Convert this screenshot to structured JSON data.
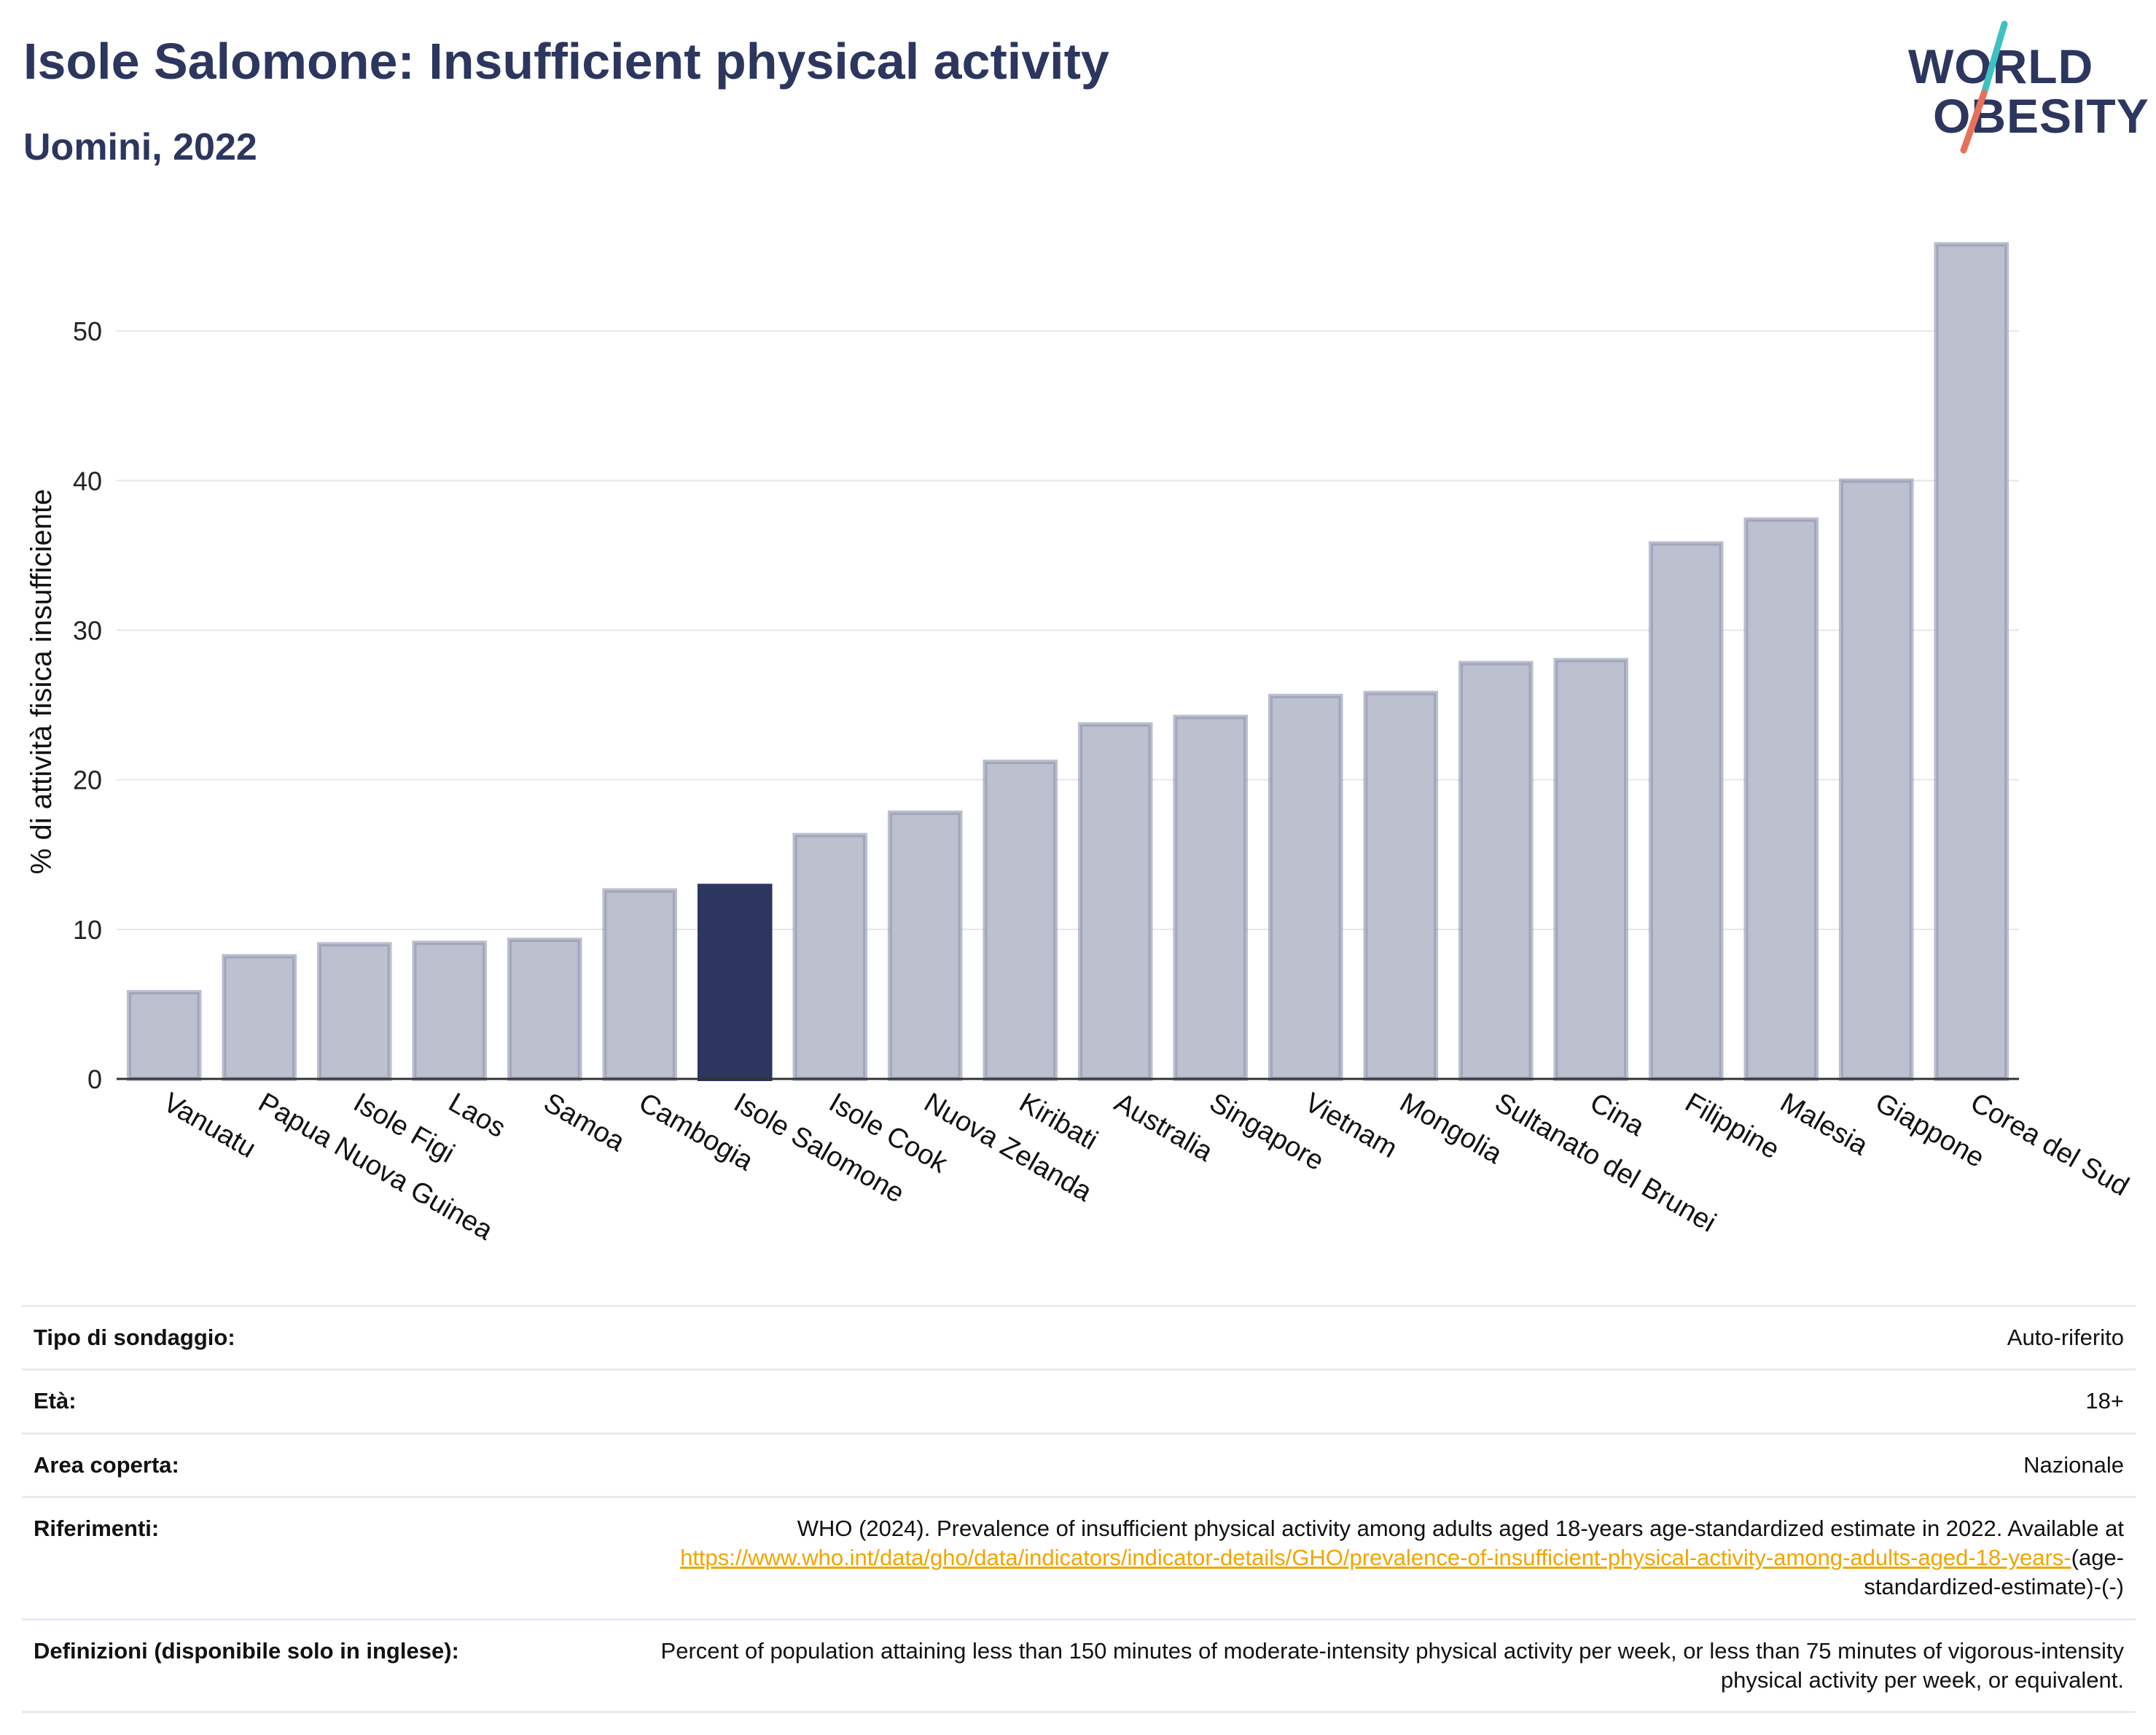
{
  "header": {
    "title": "Isole Salomone: Insufficient physical activity",
    "subtitle": "Uomini, 2022"
  },
  "logo": {
    "line1": "WORLD",
    "line2": "OBESITY",
    "slash_colors": [
      "#3ec1c1",
      "#e8705a"
    ]
  },
  "colors": {
    "bar": "#bcc0cf",
    "bar_stroke": "#8e94ad",
    "highlight": "#2c365e",
    "grid": "#e5e7ef",
    "axis": "#333333",
    "brand": "#2c365e"
  },
  "chart_data": {
    "type": "bar",
    "categories": [
      "Vanuatu",
      "Papua Nuova Guinea",
      "Isole Figi",
      "Laos",
      "Samoa",
      "Cambogia",
      "Isole Salomone",
      "Isole Cook",
      "Nuova Zelanda",
      "Kiribati",
      "Australia",
      "Singapore",
      "Vietnam",
      "Mongolia",
      "Sultanato del Brunei",
      "Cina",
      "Filippine",
      "Malesia",
      "Giappone",
      "Corea del Sud"
    ],
    "values": [
      5.8,
      8.2,
      9.0,
      9.1,
      9.3,
      12.6,
      12.9,
      16.3,
      17.8,
      21.2,
      23.7,
      24.2,
      25.6,
      25.8,
      27.8,
      28.0,
      35.8,
      37.4,
      40.0,
      55.8
    ],
    "highlight": "Isole Salomone",
    "ylabel": "% di attività fisica insufficiente",
    "ylim": [
      0,
      58
    ],
    "yticks": [
      0,
      10,
      20,
      30,
      40,
      50
    ],
    "grid": true
  },
  "info": {
    "survey_type": {
      "label": "Tipo di sondaggio:",
      "value": "Auto-riferito"
    },
    "age": {
      "label": "Età:",
      "value": "18+"
    },
    "coverage": {
      "label": "Area coperta:",
      "value": "Nazionale"
    },
    "references": {
      "label": "Riferimenti:",
      "text": "WHO (2024). Prevalence of insufficient physical activity among adults aged 18-years age-standardized estimate in 2022. Available at",
      "link": "https://www.who.int/data/gho/data/indicators/indicator-details/GHO/prevalence-of-insufficient-physical-activity-among-adults-aged-18-years-",
      "suffix": "(age-standardized-estimate)-(-)"
    },
    "definitions": {
      "label": "Definizioni (disponibile solo in inglese):",
      "value": "Percent of population attaining less than 150 minutes of moderate-intensity physical activity per week, or less than 75 minutes of vigorous-intensity physical activity per week, or equivalent."
    }
  }
}
